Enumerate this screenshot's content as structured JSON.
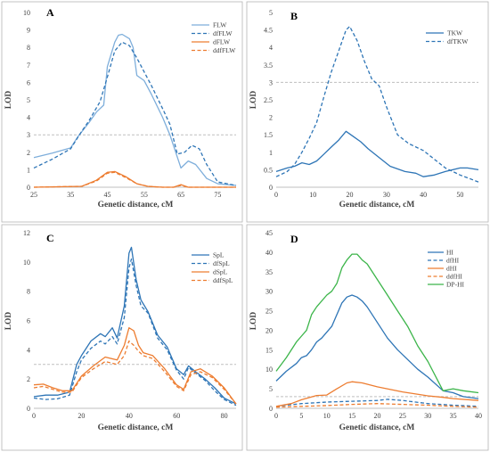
{
  "colors": {
    "blue": "#2e75b6",
    "lightblue": "#7eaedb",
    "orange": "#ed7d31",
    "green": "#3cb54a",
    "grid": "#bfbfbf"
  },
  "chart_data": [
    {
      "panel": "A",
      "type": "line",
      "xlabel": "Genetic distance, cM",
      "ylabel": "LOD",
      "xlim": [
        25,
        80
      ],
      "ylim": [
        0,
        10
      ],
      "xticks": [
        25,
        35,
        45,
        55,
        65,
        75
      ],
      "yticks": [
        0,
        1,
        2,
        3,
        4,
        5,
        6,
        7,
        8,
        9,
        10
      ],
      "threshold": 3,
      "legend_position": "top-right",
      "series": [
        {
          "name": "FLW",
          "color": "#7eaedb",
          "dash": false,
          "x": [
            25,
            30,
            35,
            37,
            40,
            42,
            44,
            45,
            47,
            48,
            49,
            51,
            52,
            53,
            55,
            57,
            60,
            62,
            65,
            67,
            69,
            72,
            75,
            80
          ],
          "y": [
            1.7,
            1.95,
            2.25,
            2.9,
            3.7,
            4.3,
            4.7,
            6.9,
            8.3,
            8.7,
            8.75,
            8.5,
            8.0,
            6.4,
            6.1,
            5.3,
            4.0,
            3.0,
            1.1,
            1.5,
            1.3,
            0.5,
            0.2,
            0.1
          ]
        },
        {
          "name": "dfFLW",
          "color": "#2e75b6",
          "dash": true,
          "x": [
            25,
            30,
            35,
            38,
            40,
            43,
            45,
            47,
            49,
            51,
            53,
            55,
            57,
            60,
            62,
            64,
            66,
            68,
            70,
            72,
            75,
            80
          ],
          "y": [
            1.1,
            1.6,
            2.2,
            3.2,
            3.8,
            4.9,
            6.3,
            7.8,
            8.3,
            8.1,
            7.4,
            6.6,
            5.8,
            4.5,
            3.6,
            1.9,
            2.0,
            2.4,
            2.2,
            1.3,
            0.3,
            0.1
          ]
        },
        {
          "name": "dFLW",
          "color": "#ed7d31",
          "dash": false,
          "x": [
            25,
            38,
            42,
            45,
            47,
            50,
            53,
            56,
            60,
            63,
            65,
            67,
            70,
            80
          ],
          "y": [
            0,
            0.05,
            0.4,
            0.85,
            0.9,
            0.6,
            0.2,
            0.05,
            0,
            0,
            0.15,
            0,
            0,
            0
          ]
        },
        {
          "name": "ddfFLW",
          "color": "#ed7d31",
          "dash": true,
          "x": [
            25,
            38,
            42,
            45,
            47,
            50,
            53,
            56,
            60,
            63,
            65,
            67,
            70,
            80
          ],
          "y": [
            0,
            0.05,
            0.35,
            0.8,
            0.85,
            0.55,
            0.2,
            0.05,
            0,
            0,
            0.1,
            0,
            0,
            0
          ]
        }
      ]
    },
    {
      "panel": "B",
      "type": "line",
      "xlabel": "Genetic distance, cM",
      "ylabel": "LOD",
      "xlim": [
        0,
        55
      ],
      "ylim": [
        0,
        5
      ],
      "xticks": [
        0,
        10,
        20,
        30,
        40,
        50
      ],
      "yticks": [
        0,
        0.5,
        1,
        1.5,
        2,
        2.5,
        3,
        3.5,
        4,
        4.5,
        5
      ],
      "ytick_labels": [
        "0",
        "0.5",
        "1",
        "1.5",
        "2",
        "2.5",
        "3",
        "3.5",
        "4",
        "4.5",
        "5"
      ],
      "threshold": 3,
      "legend_position": "top-right",
      "series": [
        {
          "name": "TKW",
          "color": "#2e75b6",
          "dash": false,
          "x": [
            0,
            3,
            5,
            7,
            9,
            11,
            13,
            15,
            17,
            19,
            21,
            23,
            25,
            28,
            31,
            35,
            38,
            40,
            43,
            46,
            50,
            52,
            55
          ],
          "y": [
            0.45,
            0.55,
            0.6,
            0.7,
            0.65,
            0.75,
            0.95,
            1.15,
            1.35,
            1.6,
            1.45,
            1.3,
            1.1,
            0.85,
            0.6,
            0.45,
            0.4,
            0.3,
            0.35,
            0.45,
            0.55,
            0.55,
            0.5
          ]
        },
        {
          "name": "dfTKW",
          "color": "#2e75b6",
          "dash": true,
          "x": [
            0,
            3,
            5,
            7,
            9,
            11,
            13,
            15,
            17,
            19,
            20,
            22,
            24,
            26,
            28,
            30,
            33,
            36,
            40,
            43,
            46,
            50,
            55
          ],
          "y": [
            0.3,
            0.45,
            0.65,
            1.0,
            1.4,
            1.85,
            2.6,
            3.3,
            3.9,
            4.5,
            4.6,
            4.2,
            3.6,
            3.1,
            2.9,
            2.3,
            1.5,
            1.25,
            1.05,
            0.8,
            0.55,
            0.35,
            0.15
          ]
        }
      ]
    },
    {
      "panel": "C",
      "type": "line",
      "xlabel": "Genetic distance, cM",
      "ylabel": "LOD",
      "xlim": [
        0,
        85
      ],
      "ylim": [
        0,
        12
      ],
      "xticks": [
        0,
        20,
        40,
        60,
        80
      ],
      "yticks": [
        0,
        2,
        4,
        6,
        8,
        10,
        12
      ],
      "threshold": 3,
      "legend_position": "top-right",
      "series": [
        {
          "name": "SpL",
          "color": "#2e75b6",
          "dash": false,
          "x": [
            0,
            5,
            10,
            15,
            18,
            20,
            24,
            28,
            30,
            33,
            35,
            38,
            40,
            41,
            43,
            45,
            48,
            52,
            56,
            60,
            63,
            65,
            68,
            72,
            76,
            80,
            85
          ],
          "y": [
            0.8,
            0.9,
            0.9,
            1.1,
            3.0,
            3.6,
            4.6,
            5.1,
            4.9,
            5.5,
            4.8,
            7.0,
            10.6,
            11.0,
            8.8,
            7.4,
            6.6,
            5.0,
            4.2,
            2.7,
            2.3,
            2.9,
            2.5,
            2.0,
            1.4,
            0.7,
            0.3
          ]
        },
        {
          "name": "dfSpL",
          "color": "#2e75b6",
          "dash": true,
          "x": [
            0,
            5,
            10,
            15,
            18,
            20,
            24,
            28,
            30,
            33,
            35,
            38,
            40,
            41,
            43,
            45,
            48,
            52,
            56,
            60,
            63,
            65,
            68,
            72,
            76,
            80,
            85
          ],
          "y": [
            0.7,
            0.6,
            0.65,
            0.9,
            2.5,
            3.3,
            4.1,
            4.6,
            4.4,
            4.9,
            4.4,
            6.2,
            9.6,
            10.2,
            8.4,
            7.0,
            6.5,
            4.8,
            4.0,
            2.6,
            2.0,
            2.8,
            2.4,
            1.9,
            1.2,
            0.6,
            0.2
          ]
        },
        {
          "name": "dSpL",
          "color": "#ed7d31",
          "dash": false,
          "x": [
            0,
            4,
            8,
            12,
            16,
            20,
            25,
            30,
            35,
            38,
            40,
            42,
            44,
            46,
            50,
            55,
            60,
            63,
            66,
            70,
            75,
            80,
            85
          ],
          "y": [
            1.6,
            1.65,
            1.4,
            1.2,
            1.2,
            2.2,
            2.9,
            3.5,
            3.3,
            4.3,
            5.5,
            5.3,
            4.3,
            3.8,
            3.6,
            2.7,
            1.6,
            1.3,
            2.5,
            2.7,
            2.2,
            1.4,
            0.3
          ]
        },
        {
          "name": "ddfSpL",
          "color": "#ed7d31",
          "dash": true,
          "x": [
            0,
            4,
            8,
            12,
            16,
            20,
            25,
            30,
            35,
            38,
            40,
            42,
            44,
            46,
            50,
            55,
            60,
            63,
            66,
            70,
            75,
            80,
            85
          ],
          "y": [
            1.4,
            1.5,
            1.3,
            1.1,
            1.1,
            2.1,
            2.7,
            3.2,
            3.0,
            3.6,
            4.6,
            4.3,
            3.9,
            3.6,
            3.4,
            2.5,
            1.5,
            1.2,
            2.3,
            2.5,
            2.1,
            1.3,
            0.3
          ]
        }
      ]
    },
    {
      "panel": "D",
      "type": "line",
      "xlabel": "Genetic distance, cM",
      "ylabel": "LOD",
      "xlim": [
        0,
        40
      ],
      "ylim": [
        0,
        45
      ],
      "xticks": [
        0,
        5,
        10,
        15,
        20,
        25,
        30,
        35,
        40
      ],
      "yticks": [
        0,
        5,
        10,
        15,
        20,
        25,
        30,
        35,
        40,
        45
      ],
      "threshold": 3,
      "legend_position": "top-right",
      "series": [
        {
          "name": "HI",
          "color": "#2e75b6",
          "dash": false,
          "x": [
            0,
            2,
            4,
            5,
            6,
            7,
            8,
            9,
            10,
            11,
            12,
            13,
            14,
            15,
            16,
            17,
            18,
            20,
            22,
            24,
            26,
            28,
            30,
            33,
            35,
            37,
            40
          ],
          "y": [
            7,
            9.5,
            11.5,
            13,
            13.5,
            15,
            17,
            18,
            19.5,
            21,
            24,
            27,
            28.5,
            29,
            28.5,
            27.5,
            26,
            22,
            18,
            15,
            12.5,
            10,
            8,
            4.5,
            4,
            3,
            2.5
          ]
        },
        {
          "name": "dfHI",
          "color": "#2e75b6",
          "dash": true,
          "x": [
            0,
            5,
            10,
            15,
            20,
            22,
            25,
            30,
            35,
            40
          ],
          "y": [
            0.5,
            1.2,
            1.6,
            1.8,
            2.0,
            2.3,
            2.0,
            1.2,
            0.8,
            0.5
          ]
        },
        {
          "name": "dHI",
          "color": "#ed7d31",
          "dash": false,
          "x": [
            0,
            3,
            5,
            8,
            10,
            12,
            14,
            15,
            17,
            20,
            25,
            30,
            33,
            35,
            40
          ],
          "y": [
            0.5,
            1.2,
            2.2,
            3.3,
            3.4,
            5.0,
            6.5,
            6.8,
            6.5,
            5.5,
            4.2,
            3.2,
            2.8,
            2.5,
            2.0
          ]
        },
        {
          "name": "ddfHI",
          "color": "#ed7d31",
          "dash": true,
          "x": [
            0,
            5,
            10,
            15,
            20,
            25,
            30,
            35,
            40
          ],
          "y": [
            0.3,
            0.5,
            0.7,
            1.0,
            1.2,
            1.0,
            0.8,
            0.5,
            0.3
          ]
        },
        {
          "name": "DP-HI",
          "color": "#3cb54a",
          "dash": false,
          "x": [
            0,
            2,
            4,
            5,
            6,
            7,
            8,
            10,
            11,
            12,
            13,
            14,
            15,
            16,
            17,
            18,
            20,
            22,
            24,
            26,
            28,
            30,
            33,
            35,
            37,
            40
          ],
          "y": [
            9.5,
            13,
            17,
            18.5,
            20,
            24,
            26,
            29,
            30,
            32,
            36,
            38,
            39.5,
            39.5,
            38,
            37,
            33,
            29,
            25,
            21,
            16,
            12,
            4.5,
            5,
            4.5,
            4
          ]
        }
      ]
    }
  ]
}
